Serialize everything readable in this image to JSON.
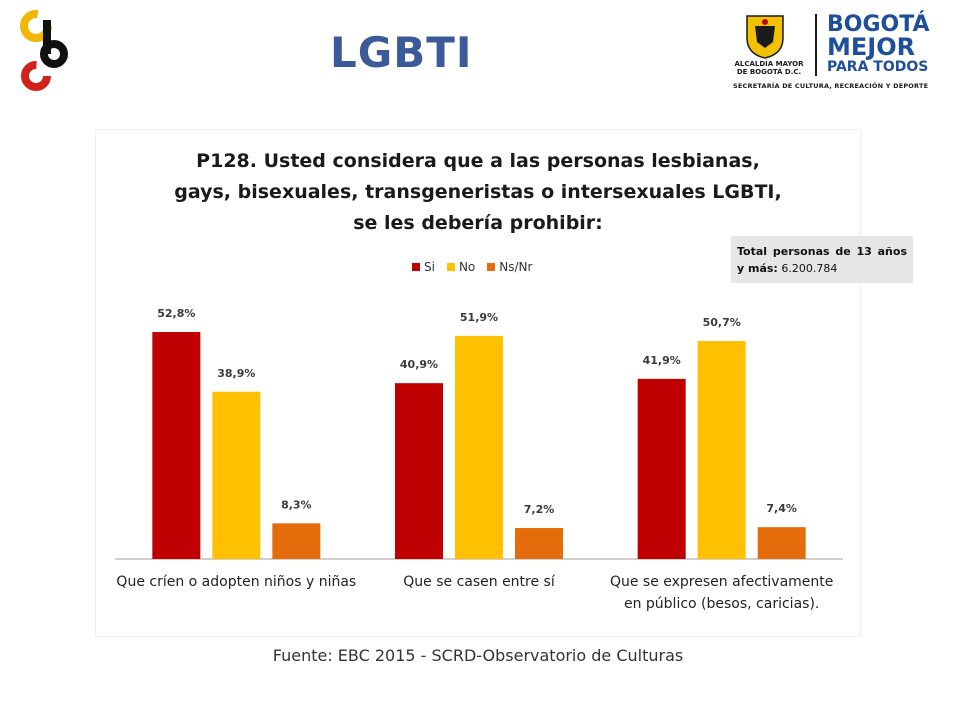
{
  "header": {
    "title": "LGBTI",
    "gov_logo": {
      "alcaldia_line1": "ALCALDÍA MAYOR",
      "alcaldia_line2": "DE BOGOTÁ D.C.",
      "brand_line1": "BOGOTÁ",
      "brand_line2": "MEJOR",
      "brand_line3": "PARA TODOS",
      "secretaria": "SECRETARÍA DE CULTURA, RECREACIÓN Y DEPORTE"
    }
  },
  "total_box": {
    "label": "Total personas de 13 años y más:",
    "value": "6.200.784"
  },
  "source": "Fuente: EBC  2015 - SCRD-Observatorio  de Culturas",
  "colors": {
    "si": "#c00000",
    "no": "#ffc000",
    "nsnr": "#e46c0a",
    "title_blue": "#3a5a99"
  },
  "chart_data": {
    "type": "bar",
    "title_lines": [
      "P128. Usted considera que a las personas lesbianas,",
      "gays, bisexuales, transgeneristas o intersexuales LGBTI,",
      "se les debería prohibir:"
    ],
    "legend_position": "top-center",
    "grid": false,
    "ylim": [
      0,
      60
    ],
    "categories": [
      [
        "Que críen o adopten niños y niñas"
      ],
      [
        "Que se casen entre sí"
      ],
      [
        "Que se expresen afectivamente",
        "en público (besos, caricias)."
      ]
    ],
    "series": [
      {
        "name": "Si",
        "color": "#c00000",
        "values": [
          52.8,
          40.9,
          41.9
        ],
        "labels": [
          "52,8%",
          "40,9%",
          "41,9%"
        ]
      },
      {
        "name": "No",
        "color": "#ffc000",
        "values": [
          38.9,
          51.9,
          50.7
        ],
        "labels": [
          "38,9%",
          "51,9%",
          "50,7%"
        ]
      },
      {
        "name": "Ns/Nr",
        "color": "#e46c0a",
        "values": [
          8.3,
          7.2,
          7.4
        ],
        "labels": [
          "8,3%",
          "7,2%",
          "7,4%"
        ]
      }
    ]
  }
}
